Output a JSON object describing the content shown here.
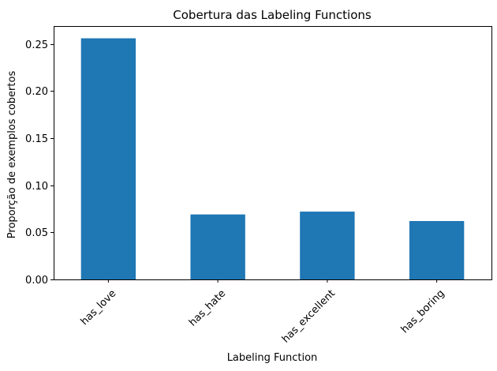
{
  "chart_data": {
    "type": "bar",
    "title": "Cobertura das Labeling Functions",
    "xlabel": "Labeling Function",
    "ylabel": "Proporção de exemplos cobertos",
    "categories": [
      "has_love",
      "has_hate",
      "has_excellent",
      "has_boring"
    ],
    "values": [
      0.256,
      0.069,
      0.072,
      0.062
    ],
    "ylim": [
      0,
      0.269
    ],
    "yticks": [
      0.0,
      0.05,
      0.1,
      0.15,
      0.2,
      0.25
    ],
    "ytick_labels": [
      "0.00",
      "0.05",
      "0.10",
      "0.15",
      "0.20",
      "0.25"
    ],
    "x_tick_rotation_deg": 45,
    "bar_color": "#1f77b4",
    "grid": false,
    "legend": "none"
  }
}
